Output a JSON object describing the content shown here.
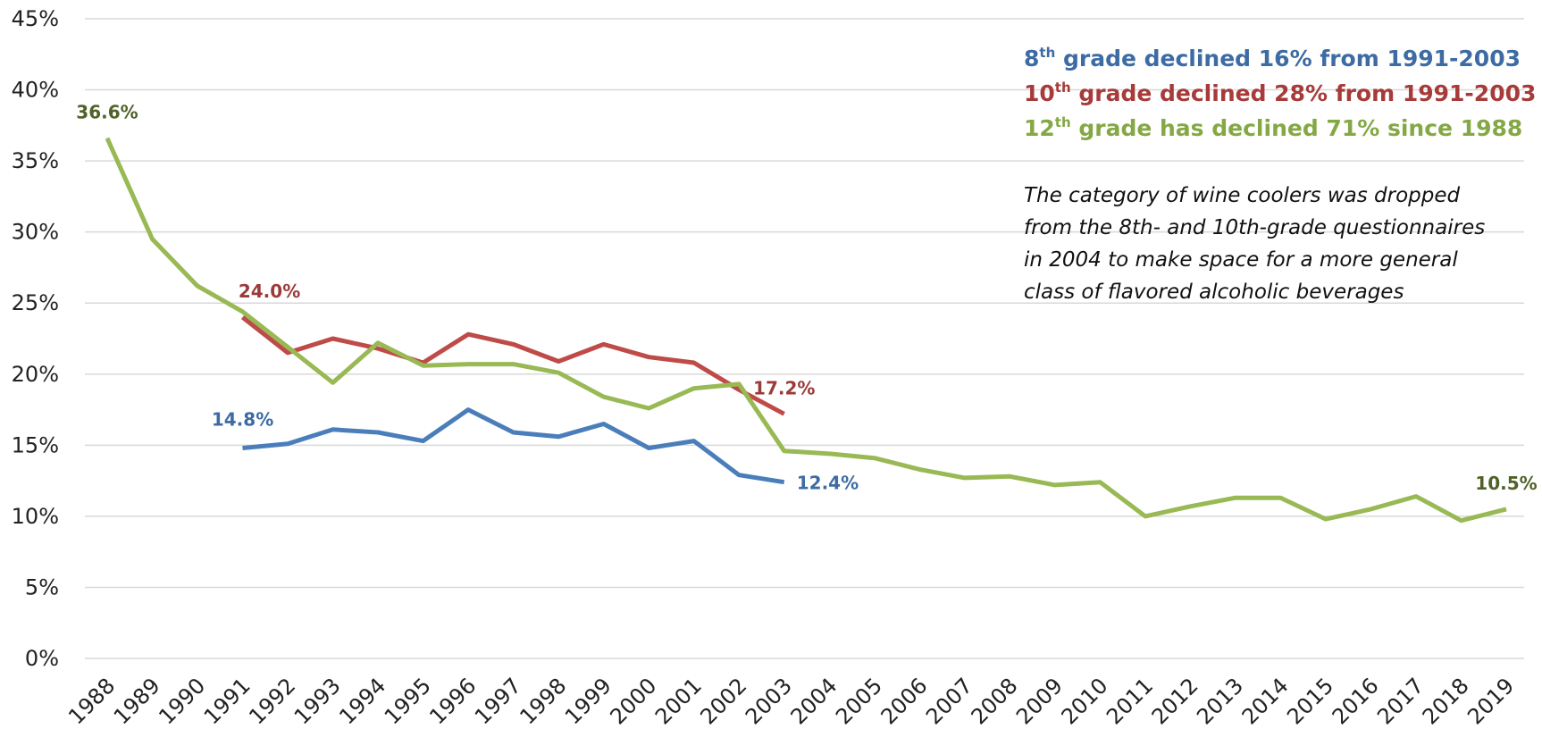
{
  "chart_data": {
    "type": "line",
    "categories": [
      "1988",
      "1989",
      "1990",
      "1991",
      "1992",
      "1993",
      "1994",
      "1995",
      "1996",
      "1997",
      "1998",
      "1999",
      "2000",
      "2001",
      "2002",
      "2003",
      "2004",
      "2005",
      "2006",
      "2007",
      "2008",
      "2009",
      "2010",
      "2011",
      "2012",
      "2013",
      "2014",
      "2015",
      "2016",
      "2017",
      "2018",
      "2019"
    ],
    "ylim": [
      0,
      45
    ],
    "yticks": [
      {
        "value": 0,
        "label": "0%"
      },
      {
        "value": 5,
        "label": "5%"
      },
      {
        "value": 10,
        "label": "10%"
      },
      {
        "value": 15,
        "label": "15%"
      },
      {
        "value": 20,
        "label": "20%"
      },
      {
        "value": 25,
        "label": "25%"
      },
      {
        "value": 30,
        "label": "30%"
      },
      {
        "value": 35,
        "label": "35%"
      },
      {
        "value": 40,
        "label": "40%"
      },
      {
        "value": 45,
        "label": "45%"
      }
    ],
    "grid": true,
    "series": [
      {
        "color": "#4a7ebb",
        "label_color": "#3d6ba3",
        "values": [
          null,
          null,
          null,
          14.8,
          15.1,
          16.1,
          15.9,
          15.3,
          17.5,
          15.9,
          15.6,
          16.5,
          14.8,
          15.3,
          12.9,
          12.4,
          null,
          null,
          null,
          null,
          null,
          null,
          null,
          null,
          null,
          null,
          null,
          null,
          null,
          null,
          null,
          null
        ],
        "value_labels": [
          null,
          null,
          null,
          "14.8%",
          null,
          null,
          null,
          null,
          null,
          null,
          null,
          null,
          null,
          null,
          null,
          "12.4%",
          null,
          null,
          null,
          null,
          null,
          null,
          null,
          null,
          null,
          null,
          null,
          null,
          null,
          null,
          null,
          null
        ]
      },
      {
        "color": "#be4b48",
        "label_color": "#9b3b39",
        "values": [
          null,
          null,
          null,
          24.0,
          21.5,
          22.5,
          21.8,
          20.8,
          22.8,
          22.1,
          20.9,
          22.1,
          21.2,
          20.8,
          18.9,
          17.2,
          null,
          null,
          null,
          null,
          null,
          null,
          null,
          null,
          null,
          null,
          null,
          null,
          null,
          null,
          null,
          null
        ],
        "value_labels": [
          null,
          null,
          null,
          "24.0%",
          null,
          null,
          null,
          null,
          null,
          null,
          null,
          null,
          null,
          null,
          null,
          "17.2%",
          null,
          null,
          null,
          null,
          null,
          null,
          null,
          null,
          null,
          null,
          null,
          null,
          null,
          null,
          null,
          null
        ]
      },
      {
        "color": "#98b954",
        "label_color": "#4f6228",
        "values": [
          36.6,
          29.5,
          26.2,
          24.4,
          21.9,
          19.4,
          22.2,
          20.6,
          20.7,
          20.7,
          20.1,
          18.4,
          17.6,
          19.0,
          19.3,
          14.6,
          14.4,
          14.1,
          13.3,
          12.7,
          12.8,
          12.2,
          12.4,
          10.0,
          10.7,
          11.3,
          11.3,
          9.8,
          10.5,
          11.4,
          9.7,
          10.5
        ],
        "value_labels": [
          "36.6%",
          null,
          null,
          null,
          null,
          null,
          null,
          null,
          null,
          null,
          null,
          null,
          null,
          null,
          null,
          null,
          null,
          null,
          null,
          null,
          null,
          null,
          null,
          null,
          null,
          null,
          null,
          null,
          null,
          null,
          null,
          "10.5%"
        ]
      }
    ],
    "annotations": [
      {
        "ordinal": "8",
        "suffix": "th",
        "text": " grade declined 16% from 1991-2003",
        "color": "#3d6ba3"
      },
      {
        "ordinal": "10",
        "suffix": "th",
        "text": " grade declined 28% from 1991-2003",
        "color": "#a63b3a"
      },
      {
        "ordinal": "12",
        "suffix": "th",
        "text": " grade has declined 71% since 1988",
        "color": "#84a844"
      }
    ],
    "note": [
      "The category of wine coolers was dropped",
      "from the 8th- and 10th-grade questionnaires",
      "in 2004 to make space for a more general",
      "class of flavored alcoholic beverages"
    ]
  }
}
